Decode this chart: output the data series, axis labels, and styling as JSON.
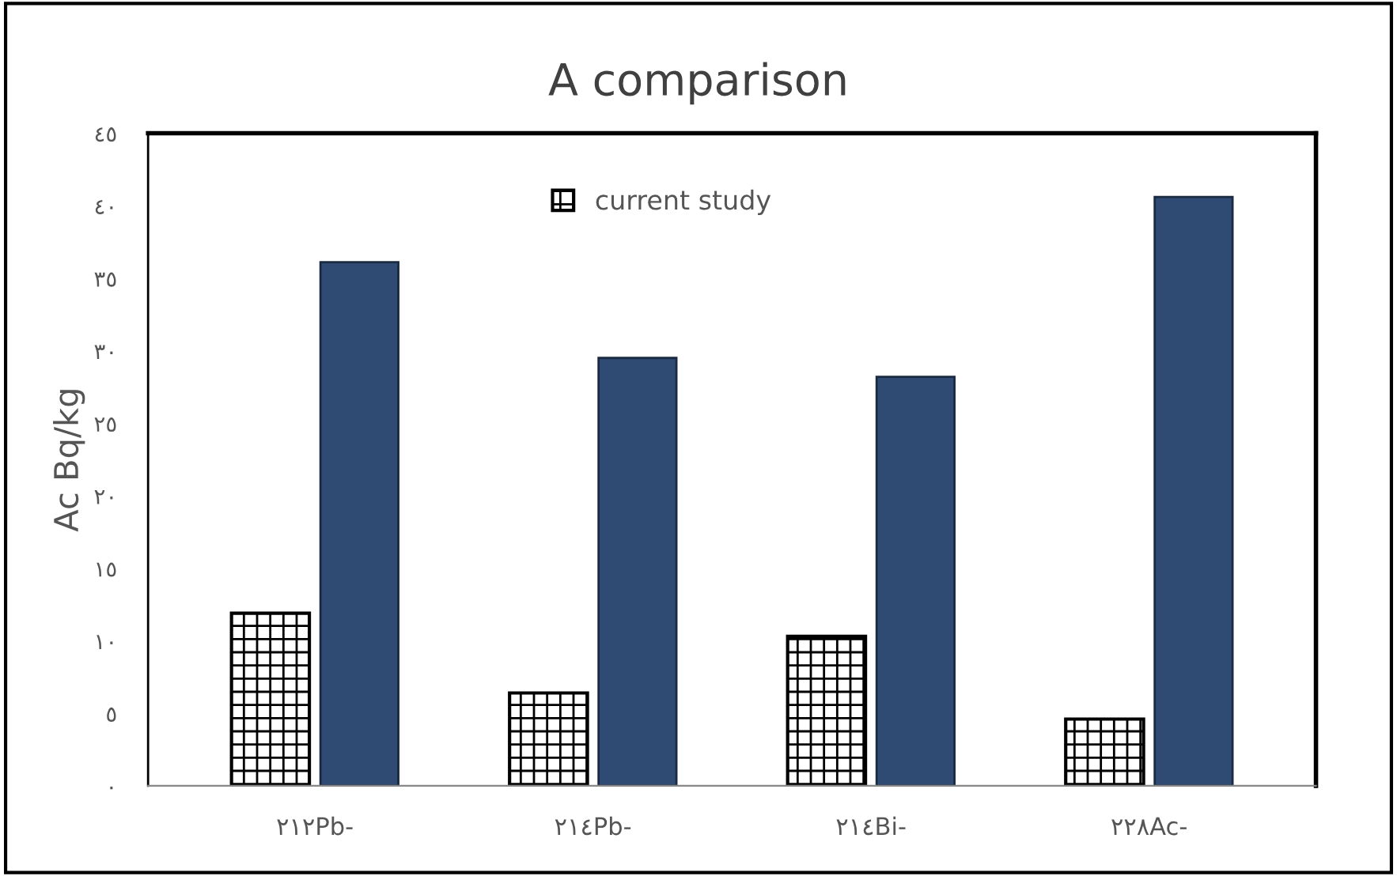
{
  "chart_data": {
    "type": "bar",
    "title": "A comparison",
    "ylabel": "Ac Bq/kg",
    "categories": [
      "٢١٢Pb-",
      "٢١٤Pb-",
      "٢١٤Bi-",
      "٢٢٨Ac-"
    ],
    "series": [
      {
        "name": "current study",
        "color": "#000000",
        "values": [
          11.9,
          6.4,
          10.3,
          4.6
        ]
      },
      {
        "color": "#2f4b74",
        "values": [
          36.1,
          29.5,
          28.2,
          40.6
        ]
      }
    ],
    "ylim": [
      0,
      45
    ],
    "yticks": [
      {
        "value": 0,
        "label": "٠"
      },
      {
        "value": 5,
        "label": "٥"
      },
      {
        "value": 10,
        "label": "١٠"
      },
      {
        "value": 15,
        "label": "١٥"
      },
      {
        "value": 20,
        "label": "٢٠"
      },
      {
        "value": 25,
        "label": "٢٥"
      },
      {
        "value": 30,
        "label": "٣٠"
      },
      {
        "value": 35,
        "label": "٣٥"
      },
      {
        "value": 40,
        "label": "٤٠"
      },
      {
        "value": 45,
        "label": "٤٥"
      }
    ],
    "grid": false,
    "legend": "top"
  }
}
